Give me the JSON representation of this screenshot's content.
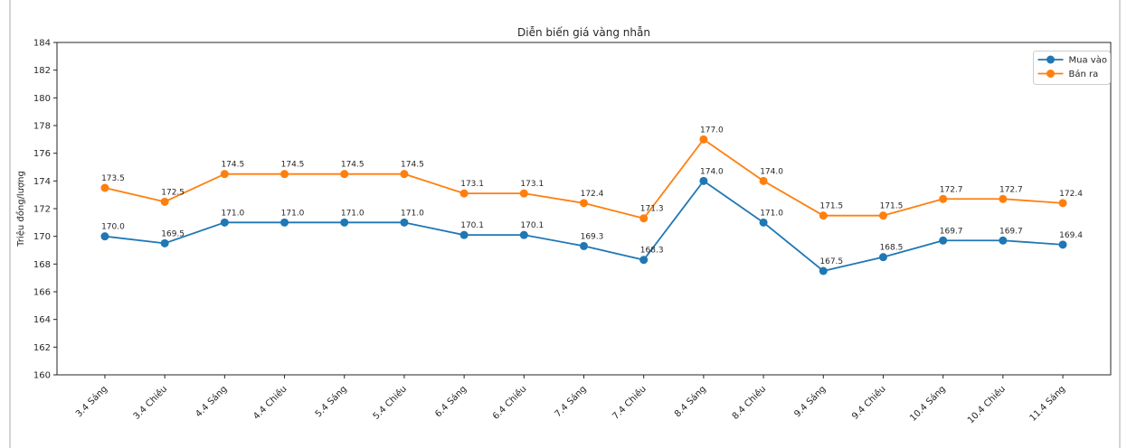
{
  "page": {
    "background": "#ffffff",
    "edge_line_color": "#d4d4d4",
    "text_color": "#262626",
    "spine_color": "#262626",
    "legend_border_color": "#cccccc"
  },
  "chart_data": {
    "type": "line",
    "title": "Diễn biến giá vàng nhẫn",
    "ylabel": "Triệu đồng/lượng",
    "xlabel": "",
    "grid": false,
    "legend_position": "upper-right",
    "marker": "circle",
    "point_labels": true,
    "point_labels_decimals": 1,
    "ylim": [
      160,
      184
    ],
    "ytick_step": 2,
    "categories": [
      "3.4 Sáng",
      "3.4 Chiều",
      "4.4 Sáng",
      "4.4 Chiều",
      "5.4 Sáng",
      "5.4 Chiều",
      "6.4 Sáng",
      "6.4 Chiều",
      "7.4 Sáng",
      "7.4 Chiều",
      "8.4 Sáng",
      "8.4 Chiều",
      "9.4 Sáng",
      "9.4 Chiều",
      "10.4 Sáng",
      "10.4 Chiều",
      "11.4 Sáng"
    ],
    "series": [
      {
        "name": "Mua vào",
        "color": "#1f77b4",
        "values": [
          170.0,
          169.5,
          171.0,
          171.0,
          171.0,
          171.0,
          170.1,
          170.1,
          169.3,
          168.3,
          174.0,
          171.0,
          167.5,
          168.5,
          169.7,
          169.7,
          169.4
        ]
      },
      {
        "name": "Bán ra",
        "color": "#ff7f0e",
        "values": [
          173.5,
          172.5,
          174.5,
          174.5,
          174.5,
          174.5,
          173.1,
          173.1,
          172.4,
          171.3,
          177.0,
          174.0,
          171.5,
          171.5,
          172.7,
          172.7,
          172.4
        ]
      }
    ]
  }
}
